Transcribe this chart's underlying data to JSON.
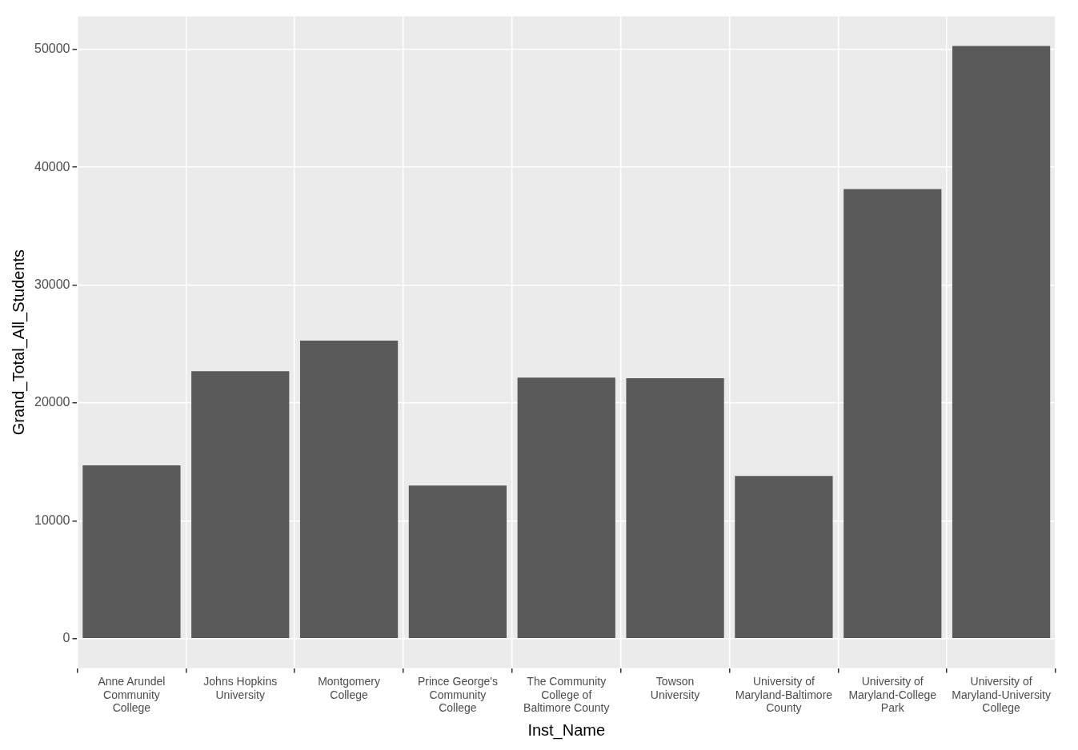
{
  "chart_data": {
    "type": "bar",
    "xlabel": "Inst_Name",
    "ylabel": "Grand_Total_All_Students",
    "categories": [
      "Anne Arundel Community College",
      "Johns Hopkins University",
      "Montgomery College",
      "Prince George's Community College",
      "The Community College of Baltimore County",
      "Towson University",
      "University of Maryland-Baltimore County",
      "University of Maryland-College Park",
      "University of Maryland-University College"
    ],
    "values": [
      14700,
      22700,
      25300,
      13000,
      22150,
      22100,
      13800,
      38150,
      50300
    ],
    "color": "#595959",
    "ylim": [
      -2500,
      52800
    ],
    "yticks": [
      0,
      10000,
      20000,
      30000,
      40000,
      50000
    ],
    "grid": true,
    "legend": false
  }
}
